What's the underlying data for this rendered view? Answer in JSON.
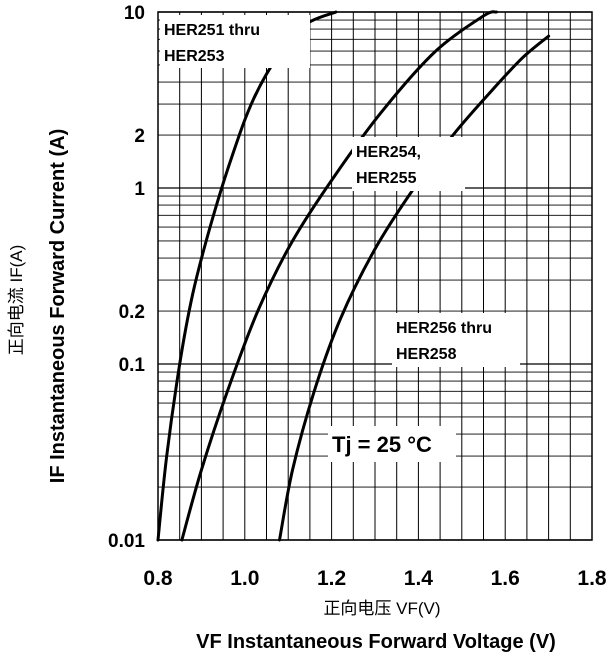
{
  "chart_data": {
    "type": "line",
    "x_label": "VF  Instantaneous Forward Voltage (V)",
    "x_label_cn": "正向电压   VF(V)",
    "y_label": "IF Instantaneous Forward Current (A)",
    "y_label_cn": "正向电流   IF(A)",
    "xlim": [
      0.8,
      1.8
    ],
    "ylim": [
      0.01,
      10
    ],
    "y_scale": "log",
    "grid": true,
    "x_ticks": [
      "0.8",
      "1.0",
      "1.2",
      "1.4",
      "1.6",
      "1.8"
    ],
    "y_ticks": [
      "0.01",
      "0.1",
      "0.2",
      "1",
      "2",
      "10"
    ],
    "condition": "Tj = 25 °C",
    "series": [
      {
        "name": "HER251 thru HER253",
        "label_line1": "HER251 thru",
        "label_line2": "HER253",
        "x": [
          0.8,
          0.82,
          0.85,
          0.88,
          0.92,
          0.97,
          1.02,
          1.08,
          1.14,
          1.21
        ],
        "y": [
          0.01,
          0.03,
          0.1,
          0.25,
          0.6,
          1.5,
          3.2,
          5.8,
          8.5,
          10
        ]
      },
      {
        "name": "HER254, HER255",
        "label_line1": "HER254,",
        "label_line2": "HER255",
        "x": [
          0.855,
          0.9,
          0.96,
          1.03,
          1.11,
          1.21,
          1.32,
          1.44,
          1.55,
          1.58
        ],
        "y": [
          0.01,
          0.025,
          0.07,
          0.2,
          0.5,
          1.2,
          2.8,
          6.0,
          9.5,
          10
        ]
      },
      {
        "name": "HER256 thru HER258",
        "label_line1": "HER256 thru",
        "label_line2": "HER258",
        "x": [
          1.08,
          1.11,
          1.16,
          1.22,
          1.3,
          1.39,
          1.48,
          1.57,
          1.64,
          1.7
        ],
        "y": [
          0.01,
          0.025,
          0.07,
          0.18,
          0.45,
          1.0,
          2.0,
          3.6,
          5.5,
          7.3
        ]
      }
    ]
  }
}
